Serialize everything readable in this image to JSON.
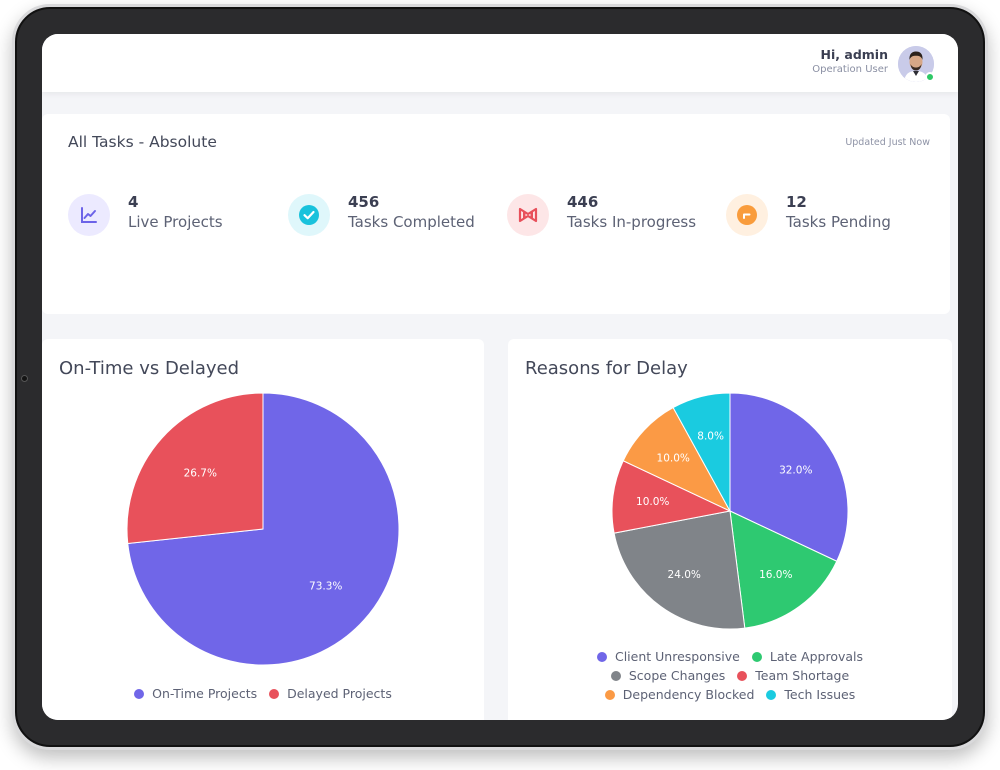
{
  "header": {
    "greeting": "Hi, admin",
    "role": "Operation User"
  },
  "stats": {
    "title": "All Tasks - Absolute",
    "updated": "Updated Just Now",
    "items": [
      {
        "value": "4",
        "label": "Live Projects",
        "icon": "trend-chart-icon",
        "color": "#6c63e8",
        "bg": "#eceaff"
      },
      {
        "value": "456",
        "label": "Tasks Completed",
        "icon": "check-circle-icon",
        "color": "#19c2dc",
        "bg": "#dff7fb"
      },
      {
        "value": "446",
        "label": "Tasks In-progress",
        "icon": "bowtie-icon",
        "color": "#e8505b",
        "bg": "#fde6e7"
      },
      {
        "value": "12",
        "label": "Tasks Pending",
        "icon": "clock-icon",
        "color": "#f99c3c",
        "bg": "#fff0e0"
      }
    ]
  },
  "chart_data": [
    {
      "type": "pie",
      "title": "On-Time vs Delayed",
      "categories": [
        "On-Time Projects",
        "Delayed Projects"
      ],
      "values": [
        73.3,
        26.7
      ],
      "colors": [
        "#7066e8",
        "#e8515b"
      ],
      "labels": [
        "73.3%",
        "26.7%"
      ],
      "legend_position": "bottom"
    },
    {
      "type": "pie",
      "title": "Reasons for Delay",
      "categories": [
        "Client Unresponsive",
        "Late Approvals",
        "Scope Changes",
        "Team Shortage",
        "Dependency Blocked",
        "Tech Issues"
      ],
      "values": [
        32.0,
        16.0,
        24.0,
        10.0,
        10.0,
        8.0
      ],
      "colors": [
        "#7066e8",
        "#2ec971",
        "#808489",
        "#e8515b",
        "#fb9a45",
        "#1acbe0"
      ],
      "labels": [
        "32.0%",
        "16.0%",
        "24.0%",
        "10.0%",
        "10.0%",
        "8.0%"
      ],
      "legend_position": "bottom"
    }
  ]
}
